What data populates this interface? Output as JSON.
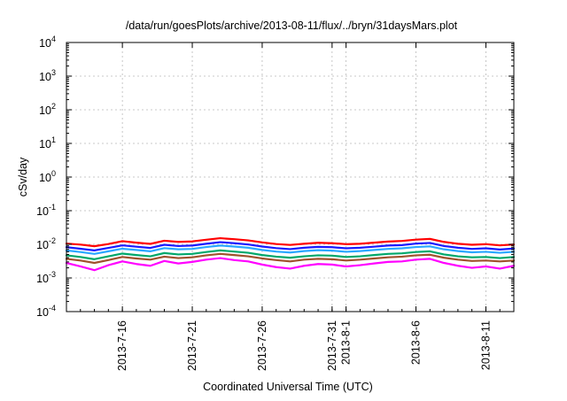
{
  "chart_data": {
    "type": "line",
    "title": "/data/run/goesPlots/archive/2013-08-11/flux/../bryn/31daysMars.plot",
    "xlabel": "Coordinated Universal Time (UTC)",
    "ylabel": "cSv/day",
    "y_scale": "log",
    "ylim": [
      0.0001,
      10000
    ],
    "xlim": [
      "2013-07-12",
      "2013-08-13"
    ],
    "grid": true,
    "x_ticks": [
      {
        "date": "2013-07-16",
        "label": "2013-7-16"
      },
      {
        "date": "2013-07-21",
        "label": "2013-7-21"
      },
      {
        "date": "2013-07-26",
        "label": "2013-7-26"
      },
      {
        "date": "2013-07-31",
        "label": "2013-7-31"
      },
      {
        "date": "2013-08-01",
        "label": "2013-8-1"
      },
      {
        "date": "2013-08-06",
        "label": "2013-8-6"
      },
      {
        "date": "2013-08-11",
        "label": "2013-8-11"
      }
    ],
    "y_ticks": [
      {
        "value": 0.0001,
        "base": "10",
        "exp": "-4"
      },
      {
        "value": 0.001,
        "base": "10",
        "exp": "-3"
      },
      {
        "value": 0.01,
        "base": "10",
        "exp": "-2"
      },
      {
        "value": 0.1,
        "base": "10",
        "exp": "-1"
      },
      {
        "value": 1,
        "base": "10",
        "exp": "0"
      },
      {
        "value": 10,
        "base": "10",
        "exp": "1"
      },
      {
        "value": 100,
        "base": "10",
        "exp": "2"
      },
      {
        "value": 1000,
        "base": "10",
        "exp": "3"
      },
      {
        "value": 10000,
        "base": "10",
        "exp": "4"
      }
    ],
    "x": [
      "2013-07-12",
      "2013-07-13",
      "2013-07-14",
      "2013-07-15",
      "2013-07-16",
      "2013-07-17",
      "2013-07-18",
      "2013-07-19",
      "2013-07-20",
      "2013-07-21",
      "2013-07-22",
      "2013-07-23",
      "2013-07-24",
      "2013-07-25",
      "2013-07-26",
      "2013-07-27",
      "2013-07-28",
      "2013-07-29",
      "2013-07-30",
      "2013-07-31",
      "2013-08-01",
      "2013-08-02",
      "2013-08-03",
      "2013-08-04",
      "2013-08-05",
      "2013-08-06",
      "2013-08-07",
      "2013-08-08",
      "2013-08-09",
      "2013-08-10",
      "2013-08-11",
      "2013-08-12",
      "2013-08-13"
    ],
    "series": [
      {
        "color": "#ff0000",
        "values": [
          0.0105,
          0.0098,
          0.0088,
          0.0102,
          0.0124,
          0.0112,
          0.0103,
          0.0128,
          0.0118,
          0.0122,
          0.0137,
          0.0152,
          0.0142,
          0.0131,
          0.0114,
          0.0102,
          0.0096,
          0.0104,
          0.0111,
          0.0108,
          0.0101,
          0.0104,
          0.0112,
          0.0121,
          0.0126,
          0.0138,
          0.0145,
          0.0118,
          0.0104,
          0.0097,
          0.0101,
          0.0093,
          0.0099
        ]
      },
      {
        "color": "#1a1aff",
        "values": [
          0.0082,
          0.0074,
          0.0066,
          0.0078,
          0.0093,
          0.0085,
          0.0078,
          0.0097,
          0.0089,
          0.0092,
          0.0104,
          0.0116,
          0.0108,
          0.0099,
          0.0086,
          0.0077,
          0.0072,
          0.0079,
          0.0084,
          0.0082,
          0.0076,
          0.0079,
          0.0085,
          0.0092,
          0.0095,
          0.0105,
          0.011,
          0.0089,
          0.0079,
          0.0073,
          0.0076,
          0.007,
          0.0075
        ]
      },
      {
        "color": "#2aa8ff",
        "values": [
          0.0066,
          0.0059,
          0.0052,
          0.0062,
          0.0074,
          0.0068,
          0.0062,
          0.0077,
          0.0071,
          0.0073,
          0.0083,
          0.0092,
          0.0086,
          0.0079,
          0.0068,
          0.0061,
          0.0057,
          0.0063,
          0.0067,
          0.0065,
          0.006,
          0.0063,
          0.0068,
          0.0073,
          0.0076,
          0.0083,
          0.0087,
          0.0071,
          0.0063,
          0.0058,
          0.006,
          0.0056,
          0.006
        ]
      },
      {
        "color": "#00a86b",
        "values": [
          0.0047,
          0.0042,
          0.0036,
          0.0044,
          0.0053,
          0.0048,
          0.0044,
          0.0055,
          0.005,
          0.0052,
          0.0059,
          0.0066,
          0.0061,
          0.0056,
          0.0048,
          0.0043,
          0.004,
          0.0044,
          0.0047,
          0.0046,
          0.0042,
          0.0044,
          0.0048,
          0.0052,
          0.0054,
          0.0059,
          0.0062,
          0.005,
          0.0044,
          0.0041,
          0.0042,
          0.0039,
          0.0042
        ]
      },
      {
        "color": "#a0522d",
        "values": [
          0.0037,
          0.0033,
          0.0028,
          0.0034,
          0.0042,
          0.0038,
          0.0035,
          0.0043,
          0.0039,
          0.0041,
          0.0047,
          0.0052,
          0.0048,
          0.0044,
          0.0038,
          0.0034,
          0.0031,
          0.0035,
          0.0037,
          0.0036,
          0.0033,
          0.0035,
          0.0038,
          0.0041,
          0.0043,
          0.0047,
          0.0049,
          0.004,
          0.0035,
          0.0032,
          0.0033,
          0.0031,
          0.0033
        ]
      },
      {
        "color": "#ff00ff",
        "values": [
          0.0028,
          0.0022,
          0.0017,
          0.0024,
          0.0031,
          0.0026,
          0.0023,
          0.0032,
          0.0027,
          0.003,
          0.0035,
          0.0039,
          0.0034,
          0.0031,
          0.0025,
          0.0021,
          0.0019,
          0.0023,
          0.0026,
          0.0025,
          0.0022,
          0.0024,
          0.0027,
          0.003,
          0.0031,
          0.0035,
          0.0037,
          0.0028,
          0.0023,
          0.002,
          0.0022,
          0.0019,
          0.0023
        ]
      }
    ]
  }
}
